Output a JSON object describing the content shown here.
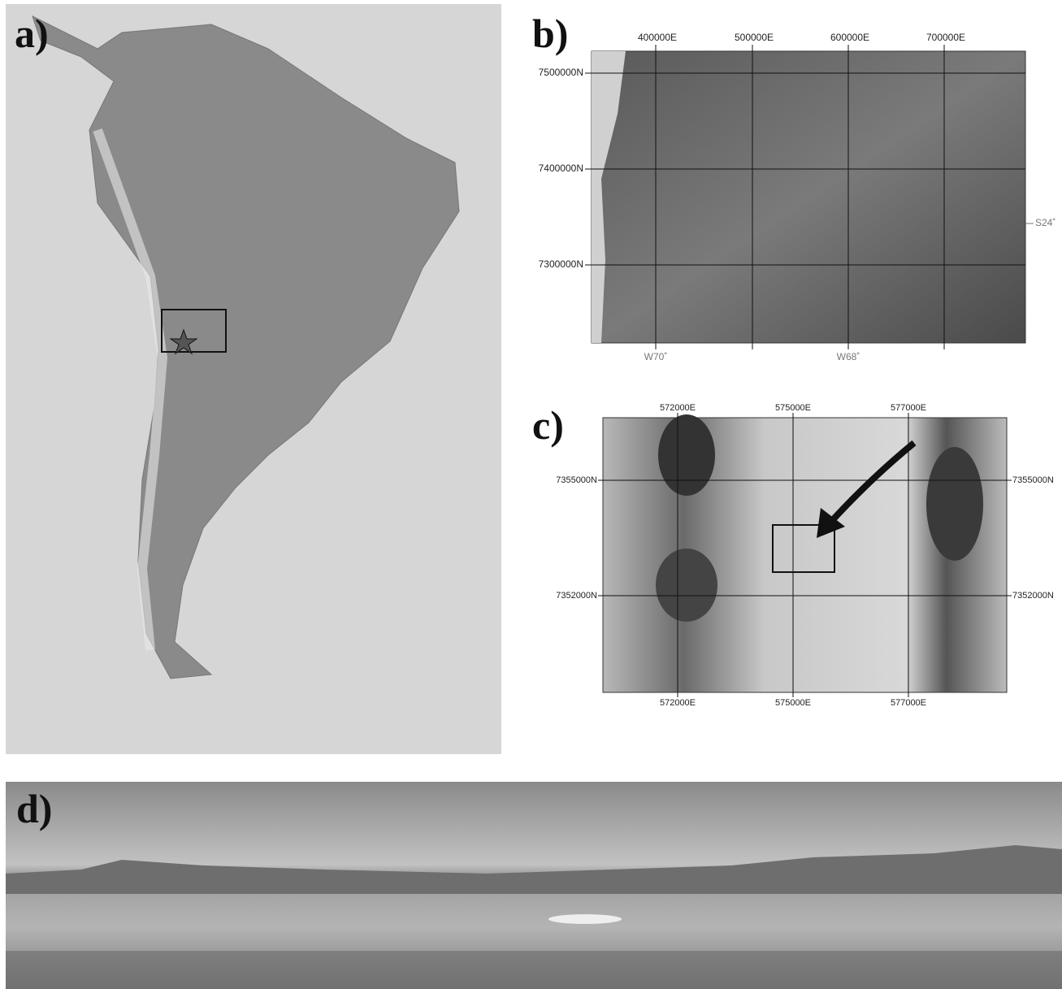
{
  "panels": {
    "a": {
      "label": "a)"
    },
    "b": {
      "label": "b)",
      "top_labels": [
        "400000E",
        "500000E",
        "600000E",
        "700000E"
      ],
      "left_labels": [
        "7500000N",
        "7400000N",
        "7300000N"
      ],
      "bottom_labels": [
        "W70˚",
        "W68˚"
      ],
      "right_labels": [
        "S24˚"
      ]
    },
    "c": {
      "label": "c)",
      "top_labels": [
        "572000E",
        "575000E",
        "577000E"
      ],
      "bottom_labels": [
        "572000E",
        "575000E",
        "577000E"
      ],
      "left_labels": [
        "7355000N",
        "7352000N"
      ],
      "right_labels": [
        "7355000N",
        "7352000N"
      ]
    },
    "d": {
      "label": "d)"
    }
  }
}
